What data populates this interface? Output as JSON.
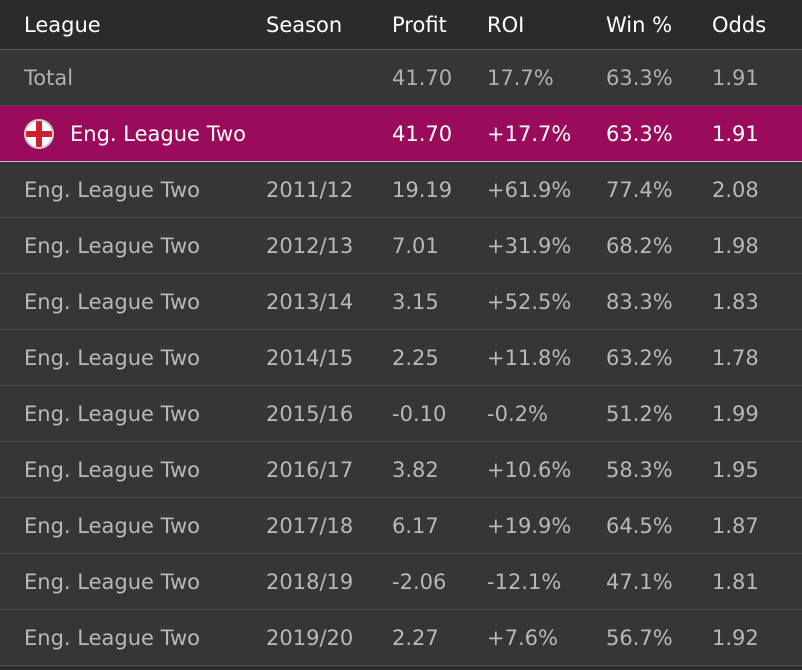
{
  "header": {
    "league": "League",
    "season": "Season",
    "profit": "Profit",
    "roi": "ROI",
    "win": "Win %",
    "odds": "Odds"
  },
  "total": {
    "league": "Total",
    "season": "",
    "profit": "41.70",
    "roi": "17.7%",
    "win": "63.3%",
    "odds": "1.91"
  },
  "group": {
    "flag_icon": "england-flag-icon",
    "league": "Eng. League Two",
    "profit": "41.70",
    "roi": "+17.7%",
    "win": "63.3%",
    "odds": "1.91"
  },
  "rows": [
    {
      "league": "Eng. League Two",
      "season": "2011/12",
      "profit": "19.19",
      "roi": "+61.9%",
      "win": "77.4%",
      "odds": "2.08"
    },
    {
      "league": "Eng. League Two",
      "season": "2012/13",
      "profit": "7.01",
      "roi": "+31.9%",
      "win": "68.2%",
      "odds": "1.98"
    },
    {
      "league": "Eng. League Two",
      "season": "2013/14",
      "profit": "3.15",
      "roi": "+52.5%",
      "win": "83.3%",
      "odds": "1.83"
    },
    {
      "league": "Eng. League Two",
      "season": "2014/15",
      "profit": "2.25",
      "roi": "+11.8%",
      "win": "63.2%",
      "odds": "1.78"
    },
    {
      "league": "Eng. League Two",
      "season": "2015/16",
      "profit": "-0.10",
      "roi": "-0.2%",
      "win": "51.2%",
      "odds": "1.99"
    },
    {
      "league": "Eng. League Two",
      "season": "2016/17",
      "profit": "3.82",
      "roi": "+10.6%",
      "win": "58.3%",
      "odds": "1.95"
    },
    {
      "league": "Eng. League Two",
      "season": "2017/18",
      "profit": "6.17",
      "roi": "+19.9%",
      "win": "64.5%",
      "odds": "1.87"
    },
    {
      "league": "Eng. League Two",
      "season": "2018/19",
      "profit": "-2.06",
      "roi": "-12.1%",
      "win": "47.1%",
      "odds": "1.81"
    },
    {
      "league": "Eng. League Two",
      "season": "2019/20",
      "profit": "2.27",
      "roi": "+7.6%",
      "win": "56.7%",
      "odds": "1.92"
    }
  ],
  "colors": {
    "background": "#2b2b2b",
    "row_background": "#363636",
    "highlight": "#9b0b5c",
    "text_muted": "#b8b8b8",
    "text_bright": "#ffffff",
    "flag_red": "#cf1f2e"
  }
}
